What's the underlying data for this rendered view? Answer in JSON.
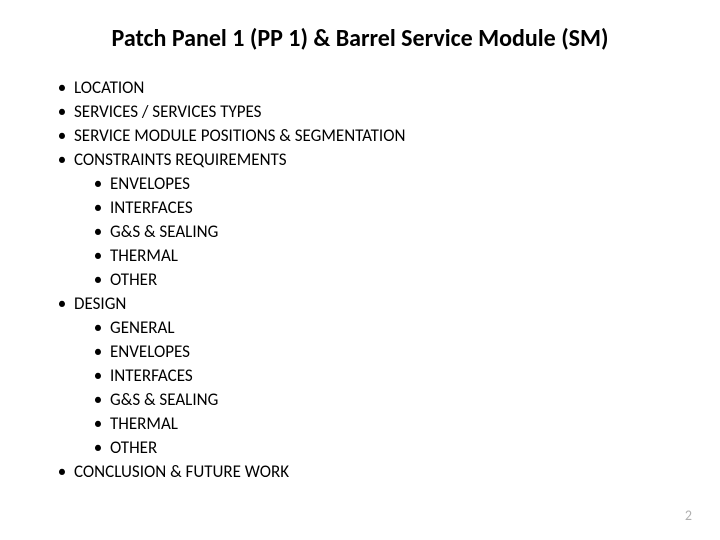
{
  "title": "Patch Panel 1 (PP 1) & Barrel Service Module (SM)",
  "pageNumber": "2",
  "items": [
    {
      "level": 1,
      "text": "LOCATION"
    },
    {
      "level": 1,
      "text": "SERVICES / SERVICES TYPES"
    },
    {
      "level": 1,
      "text": "SERVICE MODULE POSITIONS & SEGMENTATION"
    },
    {
      "level": 1,
      "text": "CONSTRAINTS REQUIREMENTS"
    },
    {
      "level": 2,
      "text": "ENVELOPES"
    },
    {
      "level": 2,
      "text": "INTERFACES"
    },
    {
      "level": 2,
      "text": "G&S & SEALING"
    },
    {
      "level": 2,
      "text": "THERMAL"
    },
    {
      "level": 2,
      "text": "OTHER"
    },
    {
      "level": 1,
      "text": "DESIGN"
    },
    {
      "level": 2,
      "text": "GENERAL"
    },
    {
      "level": 2,
      "text": "ENVELOPES"
    },
    {
      "level": 2,
      "text": "INTERFACES"
    },
    {
      "level": 2,
      "text": "G&S & SEALING"
    },
    {
      "level": 2,
      "text": "THERMAL"
    },
    {
      "level": 2,
      "text": "OTHER"
    },
    {
      "level": 1,
      "text": "CONCLUSION & FUTURE WORK"
    }
  ],
  "colors": {
    "text": "#000000",
    "background": "#ffffff",
    "pageNumber": "#b0b0b0"
  },
  "typography": {
    "titleFontSize": 24,
    "bodyFontSize": 17,
    "pageNumFontSize": 14,
    "fontFamily": "Calibri"
  }
}
